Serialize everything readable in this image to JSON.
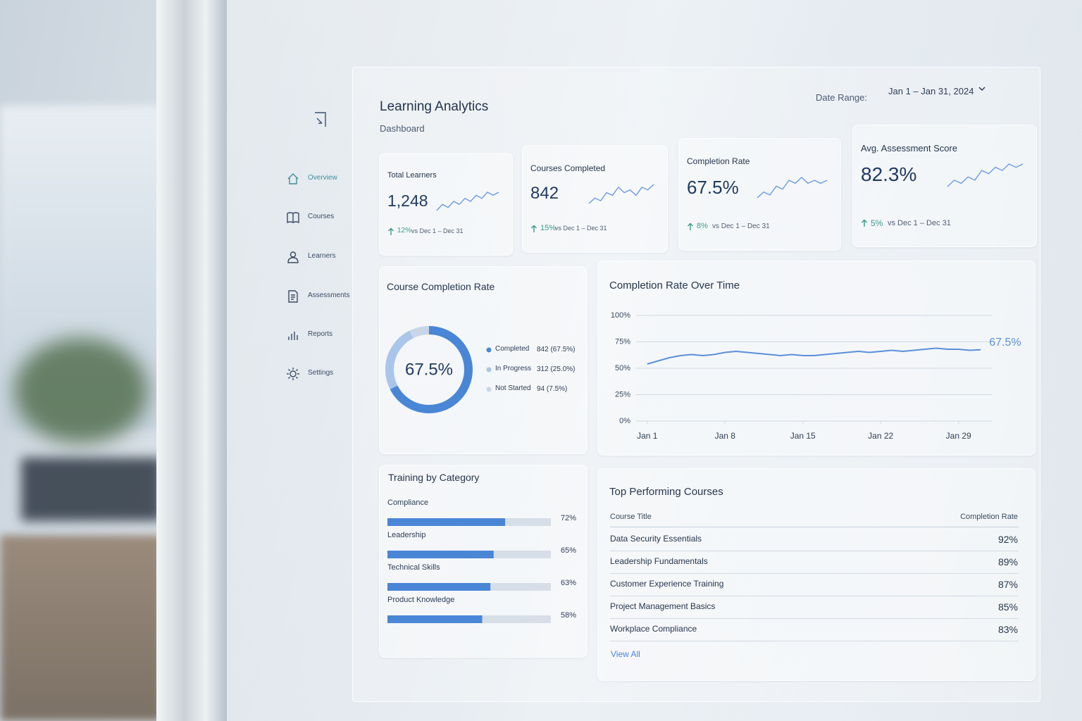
{
  "header": {
    "title": "Learning Analytics",
    "subtitle": "Dashboard",
    "date_range_label": "Date Range:",
    "date_range": "Jan 1 – Jan 31, 2024"
  },
  "nav": [
    "Overview",
    "Courses",
    "Learners",
    "Assessments",
    "Reports",
    "Settings"
  ],
  "kpis": [
    {
      "label": "Total Learners",
      "value": "1,248",
      "change": "12%",
      "compare": "vs Dec 1 – Dec 31",
      "trend": [
        3,
        5,
        4,
        6,
        5,
        7,
        6,
        8,
        7,
        9,
        8,
        9
      ]
    },
    {
      "label": "Courses Completed",
      "value": "842",
      "change": "15%",
      "compare": "vs Dec 1 – Dec 31",
      "trend": [
        2,
        4,
        3,
        6,
        5,
        8,
        6,
        7,
        5,
        8,
        7,
        9
      ]
    },
    {
      "label": "Completion Rate",
      "value": "67.5%",
      "change": "8%",
      "compare": "vs Dec 1 – Dec 31",
      "trend": [
        2,
        4,
        3,
        6,
        5,
        8,
        7,
        9,
        7,
        8,
        7,
        8
      ]
    },
    {
      "label": "Avg. Assessment Score",
      "value": "82.3%",
      "change": "5%",
      "compare": "vs Dec 1 – Dec 31",
      "trend": [
        2,
        4,
        3,
        5,
        4,
        7,
        6,
        8,
        7,
        9,
        8,
        9
      ]
    }
  ],
  "completion_donut": {
    "title": "Course Completion Rate",
    "center_label": "67.5%",
    "segments": [
      {
        "name": "Completed",
        "value": 67.5,
        "value_label": "842 (67.5%)",
        "color": "#4a86d6"
      },
      {
        "name": "In Progress",
        "value": 25.0,
        "value_label": "312 (25.0%)",
        "color": "#a9c5ea"
      },
      {
        "name": "Not Started",
        "value": 7.5,
        "value_label": "94 (7.5%)",
        "color": "#c8d6e8"
      }
    ]
  },
  "rate_over_time": {
    "type": "line",
    "title": "Completion Rate Over Time",
    "x": [
      1,
      2,
      3,
      4,
      5,
      6,
      7,
      8,
      9,
      10,
      11,
      12,
      13,
      14,
      15,
      16,
      17,
      18,
      19,
      20,
      21,
      22,
      23,
      24,
      25,
      26,
      27,
      28,
      29,
      30,
      31
    ],
    "values": [
      54,
      57,
      60,
      62,
      63,
      62,
      63,
      65,
      66,
      65,
      64,
      63,
      62,
      63,
      62,
      62,
      63,
      64,
      65,
      66,
      65,
      66,
      67,
      66,
      67,
      68,
      69,
      68,
      68,
      67,
      67.5
    ],
    "last_value_label": "67.5%",
    "color": "#5b8fdb",
    "xlim": [
      0,
      32
    ],
    "xticks": [
      {
        "value": 1,
        "label": "Jan 1"
      },
      {
        "value": 8,
        "label": "Jan 8"
      },
      {
        "value": 15,
        "label": "Jan 15"
      },
      {
        "value": 22,
        "label": "Jan 22"
      },
      {
        "value": 29,
        "label": "Jan 29"
      }
    ],
    "ylim": [
      0,
      100
    ],
    "yticks": [
      {
        "value": 0,
        "label": "0%"
      },
      {
        "value": 25,
        "label": "25%"
      },
      {
        "value": 50,
        "label": "50%"
      },
      {
        "value": 75,
        "label": "75%"
      },
      {
        "value": 100,
        "label": "100%"
      }
    ],
    "grid": true
  },
  "training_by_category": {
    "title": "Training by Category",
    "categories": [
      "Compliance",
      "Leadership",
      "Technical Skills",
      "Product Knowledge"
    ],
    "values": [
      72,
      65,
      63,
      58
    ],
    "value_labels": [
      "72%",
      "65%",
      "63%",
      "58%"
    ],
    "xlim": [
      0,
      100
    ],
    "color": "#4a86d6"
  },
  "top_courses": {
    "title": "Top Performing Courses",
    "columns": [
      "Course Title",
      "Completion Rate"
    ],
    "rows": [
      [
        "Data Security Essentials",
        "92%"
      ],
      [
        "Leadership Fundamentals",
        "89%"
      ],
      [
        "Customer Experience Training",
        "87%"
      ],
      [
        "Project Management Basics",
        "85%"
      ],
      [
        "Workplace Compliance",
        "83%"
      ]
    ],
    "link": "View All"
  }
}
